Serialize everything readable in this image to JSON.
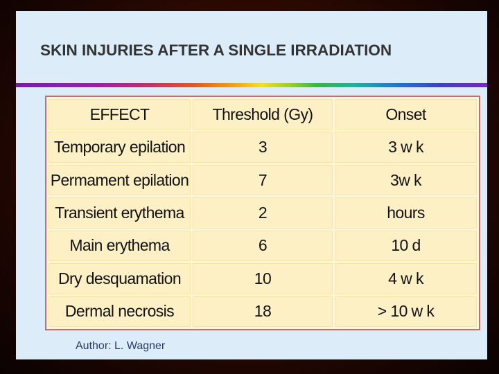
{
  "slide": {
    "title": "SKIN INJURIES AFTER A SINGLE IRRADIATION",
    "author": "Author: L. Wagner"
  },
  "table": {
    "headers": [
      "EFFECT",
      "Threshold (Gy)",
      "Onset"
    ],
    "rows": [
      [
        "Temporary epilation",
        "3",
        "3 w k"
      ],
      [
        "Permament epilation",
        "7",
        "3w k"
      ],
      [
        "Transient erythema",
        "2",
        "hours"
      ],
      [
        "Main erythema",
        "6",
        "10 d"
      ],
      [
        "Dry desquamation",
        "10",
        "4 w k"
      ],
      [
        "Dermal necrosis",
        "18",
        "> 10 w k"
      ]
    ]
  },
  "colors": {
    "slide_background": "#dcecf8",
    "table_background": "#fdf0c4",
    "table_border": "#b8707a",
    "title_text": "#333333",
    "author_text": "#2a3a6a"
  }
}
